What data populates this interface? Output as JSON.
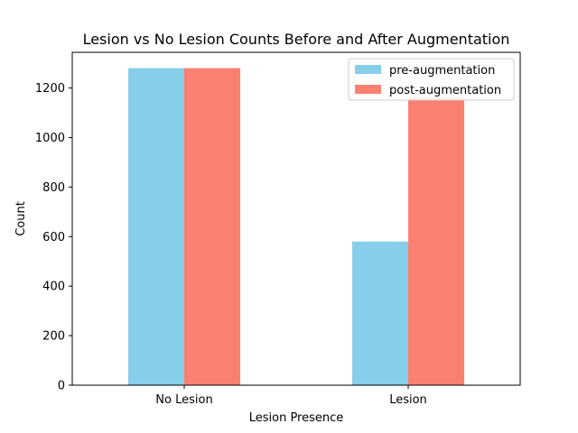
{
  "chart_data": {
    "type": "bar",
    "title": "Lesion vs No Lesion Counts Before and After Augmentation",
    "xlabel": "Lesion Presence",
    "ylabel": "Count",
    "categories": [
      "No Lesion",
      "Lesion"
    ],
    "series": [
      {
        "name": "pre-augmentation",
        "values": [
          1280,
          580
        ],
        "color": "#87CEEB"
      },
      {
        "name": "post-augmentation",
        "values": [
          1280,
          1160
        ],
        "color": "#FA8072"
      }
    ],
    "ylim": [
      0,
      1344
    ],
    "yticks": [
      0,
      200,
      400,
      600,
      800,
      1000,
      1200
    ],
    "grid": false,
    "legend": "top-right"
  }
}
